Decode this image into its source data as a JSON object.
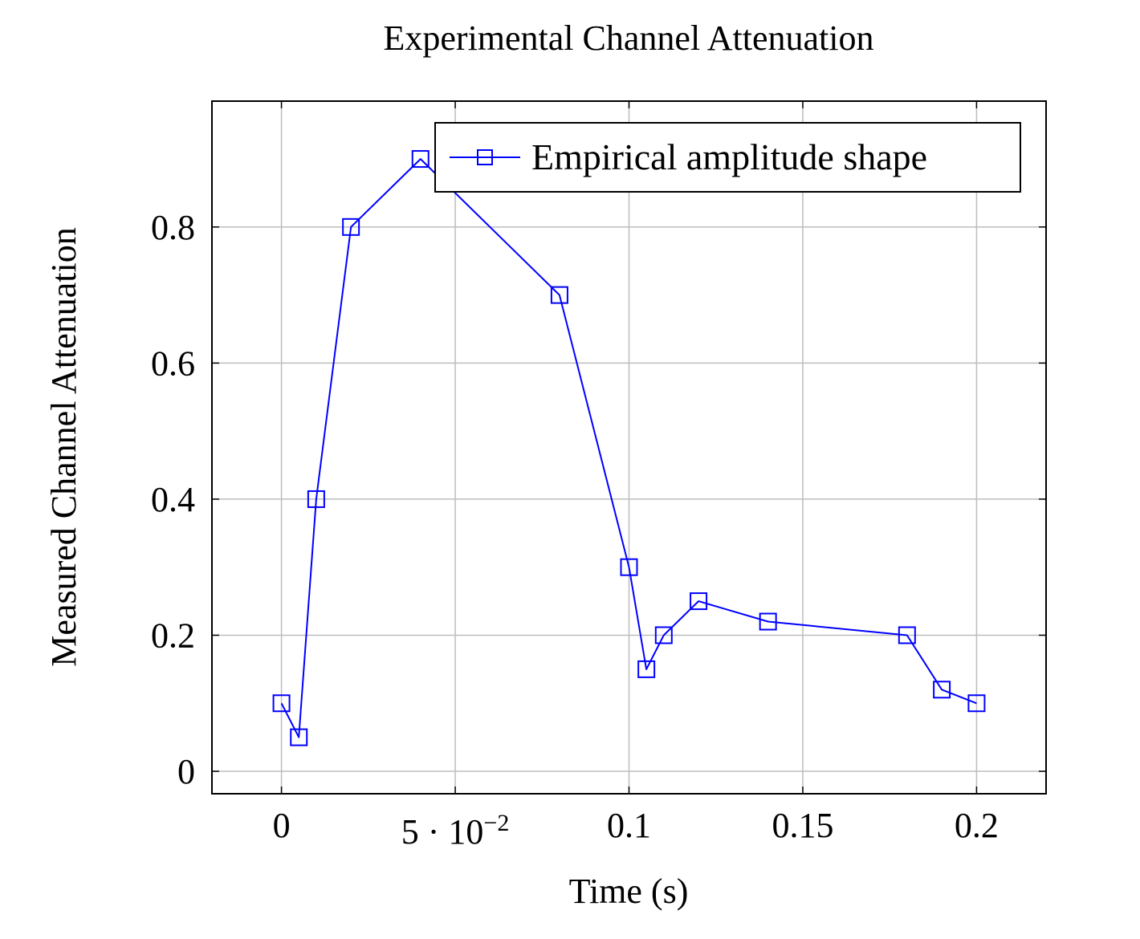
{
  "chart_data": {
    "type": "line",
    "title": "Experimental Channel Attenuation",
    "xlabel": "Time (s)",
    "ylabel": "Measured Channel Attenuation",
    "xlim": [
      -0.02,
      0.22
    ],
    "ylim": [
      -0.033,
      0.985
    ],
    "grid": true,
    "legend_position": "top-right",
    "x_ticks": [
      {
        "value": 0,
        "label": "0"
      },
      {
        "value": 0.05,
        "label": "5 · 10",
        "exponent": "−2"
      },
      {
        "value": 0.1,
        "label": "0.1"
      },
      {
        "value": 0.15,
        "label": "0.15"
      },
      {
        "value": 0.2,
        "label": "0.2"
      }
    ],
    "y_ticks": [
      {
        "value": 0,
        "label": "0"
      },
      {
        "value": 0.2,
        "label": "0.2"
      },
      {
        "value": 0.4,
        "label": "0.4"
      },
      {
        "value": 0.6,
        "label": "0.6"
      },
      {
        "value": 0.8,
        "label": "0.8"
      }
    ],
    "series": [
      {
        "name": "Empirical amplitude shape",
        "color": "#0000ff",
        "marker": "square",
        "x": [
          0,
          0.005,
          0.01,
          0.02,
          0.04,
          0.08,
          0.1,
          0.105,
          0.11,
          0.12,
          0.14,
          0.18,
          0.19,
          0.2
        ],
        "y": [
          0.1,
          0.05,
          0.4,
          0.8,
          0.9,
          0.7,
          0.3,
          0.15,
          0.2,
          0.25,
          0.22,
          0.2,
          0.12,
          0.1
        ]
      }
    ]
  }
}
